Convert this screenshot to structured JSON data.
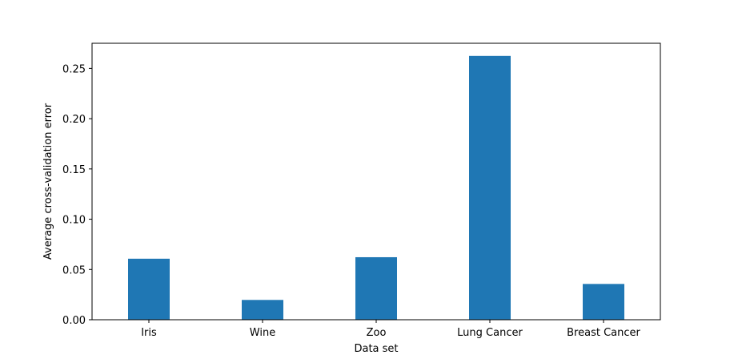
{
  "chart_data": {
    "type": "bar",
    "title": "",
    "xlabel": "Data set",
    "ylabel": "Average cross-validation error",
    "categories": [
      "Iris",
      "Wine",
      "Zoo",
      "Lung Cancer",
      "Breast Cancer"
    ],
    "values": [
      0.0607,
      0.0197,
      0.0622,
      0.2624,
      0.0356
    ],
    "ylim": [
      0,
      0.275
    ],
    "yticks": [
      0.0,
      0.05,
      0.1,
      0.15,
      0.2,
      0.25
    ],
    "ytick_labels": [
      "0.00",
      "0.05",
      "0.10",
      "0.15",
      "0.20",
      "0.25"
    ],
    "bar_color": "#1f77b4",
    "grid": false,
    "legend": "none"
  }
}
